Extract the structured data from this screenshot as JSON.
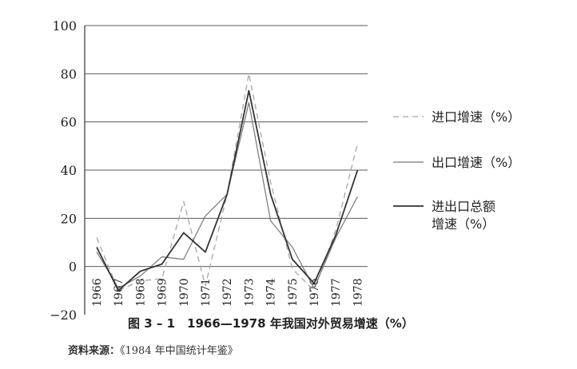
{
  "chart_data": {
    "type": "line",
    "categories": [
      "1966",
      "1967",
      "1968",
      "1969",
      "1970",
      "1971",
      "1972",
      "1973",
      "1974",
      "1975",
      "1976",
      "1977",
      "1978"
    ],
    "series": [
      {
        "name": "进口增速（%）",
        "style": "dashed",
        "color": "#a6a6a6",
        "values": [
          12,
          -10,
          -6,
          -5,
          27,
          -8,
          30,
          80,
          35,
          -1,
          -10,
          15,
          51
        ]
      },
      {
        "name": "出口增速（%）",
        "style": "solid-light",
        "color": "#777777",
        "values": [
          6,
          -9,
          -4,
          4,
          3,
          21,
          30,
          68,
          19,
          8,
          -9,
          12,
          29
        ]
      },
      {
        "name": "进出口总额\n增速（%）",
        "style": "solid-dark",
        "color": "#333333",
        "values": [
          8,
          -10,
          -2,
          1,
          14,
          6,
          30,
          73,
          30,
          3,
          -7,
          13,
          40
        ]
      }
    ],
    "ylim": [
      -20,
      100
    ],
    "yticks": [
      -20,
      0,
      20,
      40,
      60,
      80,
      100
    ],
    "grid": true,
    "legend_position": "right"
  },
  "caption": "图 3 – 1　1966—1978 年我国对外贸易增速（%）",
  "source_label": "资料来源：",
  "source_text": "《1984 年中国统计年鉴》"
}
